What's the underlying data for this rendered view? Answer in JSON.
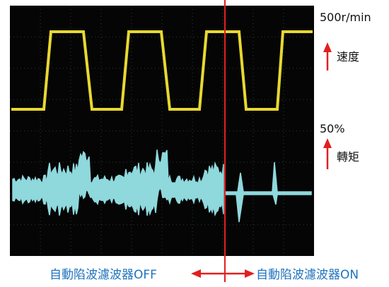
{
  "speed_scale": "500r/min",
  "speed_label": "速度",
  "torque_scale": "50%",
  "torque_label": "轉矩",
  "off_label": "自動陷波濾波器OFF",
  "on_label": "自動陷波濾波器ON"
}
